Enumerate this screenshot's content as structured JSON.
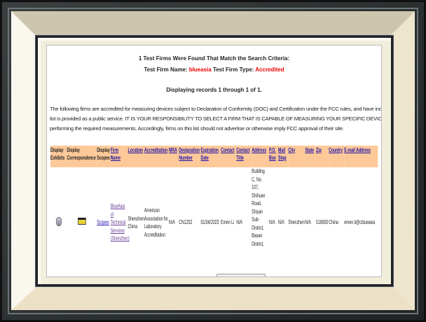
{
  "header": {
    "title": "1 Test Firms Were Found That Match the Search Criteria:",
    "name_label": "Test Firm Name:",
    "name_value": "blueasia",
    "type_label": "Test Firm Type:",
    "type_value": "Accredited",
    "records": "Displaying records 1 through 1 of 1."
  },
  "paragraph": [
    "The following firms are accredited for measuring devices subject to Declaration of Conformity (DOC) and Certification under the FCC rules, and have indicated that they are available to the publ",
    "list is provided as a public service. IT IS YOUR RESPONSIBILITY TO SELECT A FIRM THAT IS CAPABLE OF MEASURING YOUR SPECIFIC DEVICE. The FCC takes no responsibility regarding the ca",
    "performing the required measurements. Accordingly, firms on this list should not advertise or otherwise imply FCC approval of their site."
  ],
  "colors": {
    "header_bg": "#fdc999",
    "highlight": "#e00000",
    "link": "#1a0dab",
    "visited": "#6a3d9a"
  },
  "table": {
    "columns": [
      "Display Exhibits",
      "Display Correspondence",
      "Display Scopes",
      "Firm Name",
      "Location",
      "Accreditation",
      "MRA",
      "Designation Number",
      "Expiration Date",
      "Contact",
      "Contact Title",
      "Address",
      "P.O. Box",
      "Mail Stop",
      "City",
      "State",
      "Zip",
      "Country",
      "E-mail Address"
    ],
    "row": {
      "exhibits_icon": "exhibits-icon",
      "correspondence_icon": "correspondence-icon",
      "scopes": "Scopes",
      "firm_name": "BlueAsia of Technical Services (Shenzhen)",
      "location": "Shenzhen China",
      "accreditation": "American Association for Laboratory Accreditation",
      "mra": "N/A",
      "designation": "CN1252",
      "expiration": "01/04/2023",
      "contact": "Emen Li",
      "contact_title": "N/A",
      "address": "Building C, No. 107, Shihuan Road, Shiyan Sub-District, Baoan District,",
      "po_box": "N/A",
      "mail_stop": "N/A",
      "city": "Shenzhen",
      "state": "N/A",
      "zip": "518000",
      "country": "China",
      "email": "emen.li@cblueasia"
    }
  }
}
